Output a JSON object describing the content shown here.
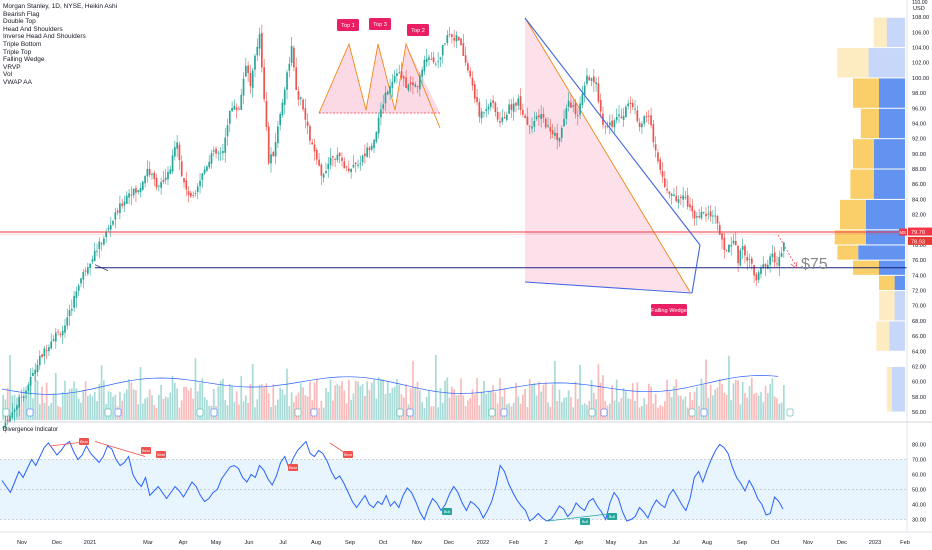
{
  "colors": {
    "up": "#26a69a",
    "down": "#ef5350",
    "rsi_line": "#2962ff",
    "hline_red": "#f23645",
    "hline_blue": "#1a237e",
    "vp_yellow": "#f9c74f",
    "vp_blue": "#5b8def",
    "pattern_pink": "#f8bbd0",
    "wedge_line": "#4466dd",
    "orange": "#f57c00"
  },
  "legend": [
    "Morgan Stanley, 1D, NYSE, Heikin Ashi",
    "Bearish Flag",
    "Double Top",
    "Head And Shoulders",
    "Inverse Head And Shoulders",
    "Triple Bottom",
    "Triple Top",
    "Falling Wedge",
    "VRVP",
    "Vol",
    "VWAP AA"
  ],
  "labels": {
    "top1": "Top 1",
    "top2": "Top 2",
    "top3": "Top 3",
    "falling_wedge": "Falling Wedge",
    "target": "$75",
    "currency": "USD",
    "price_now": "79.70",
    "price_now_sub": "78.93",
    "indicator_title": "Divergence Indicator",
    "bear": "Bear",
    "bull": "Bull"
  },
  "chart_data": [
    {
      "type": "candlestick",
      "title": "Morgan Stanley, 1D, NYSE, Heikin Ashi",
      "ylabel": "USD",
      "ylim": [
        55,
        110
      ],
      "y_ticks": [
        56,
        58,
        60,
        62,
        64,
        66,
        68,
        70,
        72,
        74,
        76,
        78,
        80,
        82,
        84,
        86,
        88,
        90,
        92,
        94,
        96,
        98,
        100,
        102,
        104,
        106,
        108,
        110
      ],
      "x_ticks": [
        "Nov",
        "Dec",
        "2021",
        "Mar",
        "Apr",
        "May",
        "Jun",
        "Jul",
        "Aug",
        "Sep",
        "Oct",
        "Nov",
        "Dec",
        "2022",
        "Feb",
        "2",
        "Apr",
        "May",
        "Jun",
        "Jul",
        "Aug",
        "Sep",
        "Oct",
        "Nov",
        "Dec",
        "2023",
        "Feb"
      ],
      "price_path": [
        [
          0,
          54
        ],
        [
          6,
          57
        ],
        [
          10,
          59
        ],
        [
          16,
          63
        ],
        [
          22,
          66
        ],
        [
          27,
          67
        ],
        [
          33,
          73
        ],
        [
          38,
          76
        ],
        [
          44,
          79
        ],
        [
          51,
          83
        ],
        [
          55,
          85
        ],
        [
          59,
          85
        ],
        [
          63,
          88
        ],
        [
          67,
          86
        ],
        [
          70,
          86
        ],
        [
          73,
          88
        ],
        [
          76,
          92
        ],
        [
          78,
          87
        ],
        [
          82,
          84
        ],
        [
          88,
          88
        ],
        [
          91,
          90
        ],
        [
          96,
          90
        ],
        [
          99,
          96
        ],
        [
          103,
          96
        ],
        [
          106,
          102
        ],
        [
          108,
          99
        ],
        [
          112,
          106
        ],
        [
          116,
          89
        ],
        [
          118,
          90
        ],
        [
          122,
          97
        ],
        [
          126,
          104
        ],
        [
          128,
          98
        ],
        [
          130,
          97
        ],
        [
          134,
          92
        ],
        [
          139,
          87
        ],
        [
          144,
          90
        ],
        [
          148,
          89
        ],
        [
          150,
          88
        ],
        [
          156,
          89
        ],
        [
          162,
          92
        ],
        [
          167,
          98
        ],
        [
          172,
          101
        ],
        [
          176,
          99
        ],
        [
          181,
          99
        ],
        [
          185,
          103
        ],
        [
          190,
          102
        ],
        [
          194,
          106
        ],
        [
          199,
          105
        ],
        [
          201,
          103
        ],
        [
          205,
          99
        ],
        [
          208,
          95
        ],
        [
          213,
          97
        ],
        [
          217,
          94
        ],
        [
          221,
          96
        ],
        [
          225,
          97
        ],
        [
          229,
          94
        ],
        [
          231,
          94
        ],
        [
          235,
          95
        ],
        [
          239,
          93
        ],
        [
          243,
          92
        ],
        [
          247,
          97
        ],
        [
          251,
          95
        ],
        [
          255,
          100
        ],
        [
          259,
          99
        ],
        [
          262,
          94
        ],
        [
          266,
          94
        ],
        [
          270,
          95
        ],
        [
          274,
          97
        ],
        [
          278,
          94
        ],
        [
          282,
          95
        ],
        [
          286,
          89
        ],
        [
          290,
          85
        ],
        [
          294,
          84
        ],
        [
          297,
          85
        ],
        [
          301,
          82
        ],
        [
          305,
          82
        ],
        [
          311,
          82
        ],
        [
          315,
          77
        ],
        [
          319,
          79
        ],
        [
          321,
          76
        ],
        [
          323,
          78
        ],
        [
          325,
          76
        ],
        [
          327,
          76
        ],
        [
          329,
          73
        ],
        [
          331,
          75
        ],
        [
          334,
          75
        ],
        [
          336,
          77
        ],
        [
          338,
          75
        ],
        [
          341,
          78
        ]
      ],
      "volume_note": "daily volume bars",
      "horizontal_lines": [
        79.7,
        75.0
      ],
      "volume_profile": "right-side VRVP histogram"
    },
    {
      "type": "line",
      "title": "Divergence Indicator",
      "ylim": [
        25,
        85
      ],
      "y_ticks": [
        30,
        40,
        50,
        60,
        70,
        80
      ],
      "band": [
        30,
        70
      ],
      "series": [
        {
          "values": [
            56,
            52,
            48,
            55,
            62,
            58,
            64,
            70,
            66,
            72,
            78,
            81,
            77,
            73,
            76,
            80,
            82,
            75,
            70,
            73,
            79,
            74,
            71,
            68,
            72,
            79,
            77,
            70,
            66,
            68,
            72,
            60,
            55,
            52,
            58,
            46,
            49,
            52,
            48,
            44,
            48,
            52,
            49,
            45,
            50,
            55,
            52,
            46,
            42,
            44,
            48,
            50,
            57,
            61,
            65,
            66,
            64,
            58,
            55,
            60,
            58,
            66,
            63,
            57,
            53,
            59,
            68,
            72,
            64,
            71,
            76,
            79,
            82,
            74,
            72,
            76,
            74,
            69,
            62,
            57,
            59,
            54,
            48,
            42,
            38,
            42,
            46,
            40,
            38,
            42,
            40,
            46,
            39,
            42,
            38,
            46,
            51,
            48,
            42,
            35,
            30,
            38,
            44,
            41,
            36,
            40,
            47,
            52,
            48,
            41,
            36,
            42,
            40,
            37,
            31,
            36,
            42,
            52,
            66,
            62,
            54,
            48,
            43,
            39,
            36,
            29,
            31,
            34,
            31,
            29,
            30,
            34,
            39,
            37,
            32,
            35,
            41,
            38,
            36,
            42,
            44,
            39,
            35,
            30,
            41,
            48,
            44,
            35,
            29,
            30,
            32,
            38,
            35,
            31,
            38,
            43,
            40,
            38,
            46,
            50,
            45,
            40,
            36,
            44,
            58,
            62,
            55,
            63,
            70,
            76,
            80,
            78,
            74,
            65,
            58,
            54,
            49,
            56,
            51,
            44,
            40,
            33,
            34,
            45,
            42,
            37
          ]
        }
      ],
      "annotations": [
        "Bear",
        "Bear",
        "Bear",
        "Bear",
        "Bear",
        "Bull",
        "Bull"
      ]
    }
  ]
}
